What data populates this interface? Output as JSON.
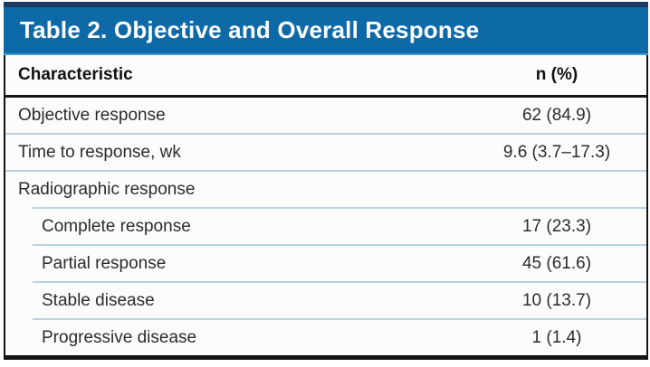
{
  "title": "Table 2. Objective and Overall Response",
  "columns": {
    "characteristic": "Characteristic",
    "n_pct": "n (%)"
  },
  "rows": [
    {
      "label": "Objective response",
      "value": "62 (84.9)",
      "indent": false
    },
    {
      "label": "Time to response, wk",
      "value": "9.6 (3.7–17.3)",
      "indent": false
    },
    {
      "label": "Radiographic response",
      "value": "",
      "indent": false
    },
    {
      "label": "Complete response",
      "value": "17 (23.3)",
      "indent": true
    },
    {
      "label": "Partial response",
      "value": "45 (61.6)",
      "indent": true
    },
    {
      "label": "Stable disease",
      "value": "10 (13.7)",
      "indent": true
    },
    {
      "label": "Progressive disease",
      "value": "1 (1.4)",
      "indent": true
    }
  ],
  "colors": {
    "title_bar_blue": "#0e69a7",
    "title_bar_top_navy": "#1c3a63",
    "title_bar_bottom_edge": "#3e9dc9",
    "title_text": "#ffffff",
    "rule_black": "#141414",
    "row_divider_blue": "#b9d3e0",
    "body_text": "#2b2b2b",
    "body_background": "#fcfcfb"
  }
}
